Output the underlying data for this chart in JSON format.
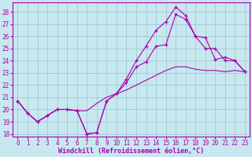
{
  "xlabel": "Windchill (Refroidissement éolien,°C)",
  "background_color": "#c8e8f0",
  "grid_color": "#a0c8d8",
  "line_color": "#aa00aa",
  "spine_color": "#aa00aa",
  "xlim": [
    -0.5,
    23.5
  ],
  "ylim": [
    17.8,
    28.8
  ],
  "yticks": [
    18,
    19,
    20,
    21,
    22,
    23,
    24,
    25,
    26,
    27,
    28
  ],
  "xticks": [
    0,
    1,
    2,
    3,
    4,
    5,
    6,
    7,
    8,
    9,
    10,
    11,
    12,
    13,
    14,
    15,
    16,
    17,
    18,
    19,
    20,
    21,
    22,
    23
  ],
  "series": [
    {
      "x": [
        0,
        1,
        2,
        3,
        4,
        5,
        6,
        7,
        8,
        9,
        10,
        11,
        12,
        13,
        14,
        15,
        16,
        17,
        18,
        19,
        20,
        21,
        22,
        23
      ],
      "y": [
        20.7,
        19.7,
        19.0,
        19.5,
        20.0,
        20.0,
        19.9,
        19.9,
        20.5,
        21.0,
        21.3,
        21.6,
        22.0,
        22.4,
        22.8,
        23.2,
        23.5,
        23.5,
        23.3,
        23.2,
        23.2,
        23.1,
        23.2,
        23.1
      ],
      "marker": false
    },
    {
      "x": [
        0,
        1,
        2,
        3,
        4,
        5,
        6,
        7,
        8,
        9,
        10,
        11,
        12,
        13,
        14,
        15,
        16,
        17,
        18,
        19,
        20,
        21,
        22,
        23
      ],
      "y": [
        20.7,
        19.7,
        19.0,
        19.5,
        20.0,
        20.0,
        19.9,
        18.0,
        18.1,
        20.7,
        21.3,
        22.2,
        23.5,
        23.9,
        25.2,
        25.3,
        27.8,
        27.4,
        26.0,
        25.0,
        25.0,
        24.0,
        24.0,
        23.1
      ],
      "marker": true
    },
    {
      "x": [
        0,
        1,
        2,
        3,
        4,
        5,
        6,
        7,
        8,
        9,
        10,
        11,
        12,
        13,
        14,
        15,
        16,
        17,
        18,
        19,
        20,
        21,
        22,
        23
      ],
      "y": [
        20.7,
        19.7,
        19.0,
        19.5,
        20.0,
        20.0,
        19.9,
        18.0,
        18.1,
        20.7,
        21.3,
        22.5,
        24.0,
        25.2,
        26.5,
        27.2,
        28.4,
        27.7,
        26.0,
        25.9,
        24.1,
        24.3,
        24.0,
        23.1
      ],
      "marker": true
    }
  ],
  "tick_fontsize": 5.5,
  "xlabel_fontsize": 6.0
}
